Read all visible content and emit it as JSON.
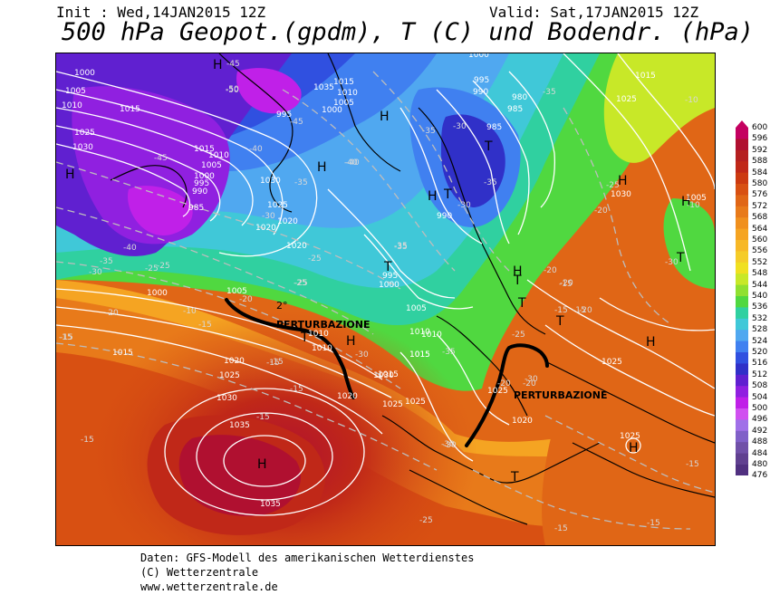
{
  "header": {
    "init": "Init : Wed,14JAN2015 12Z",
    "valid": "Valid: Sat,17JAN2015 12Z",
    "title": "500 hPa Geopot.(gpdm), T (C) und Bodendr. (hPa)"
  },
  "footer": {
    "line1": "Daten: GFS-Modell des amerikanischen Wetterdienstes",
    "line2": "(C) Wetterzentrale",
    "line3": "www.wetterzentrale.de"
  },
  "annotations": {
    "front_west": "PERTURBAZIONE",
    "front_east": "PERTURBAZIONE",
    "note_degree": "2°"
  },
  "pressure_centers": [
    "H",
    "H",
    "H",
    "H",
    "H",
    "H",
    "H",
    "H",
    "H",
    "H",
    "H",
    "H",
    "T",
    "T",
    "T",
    "T",
    "T",
    "T",
    "T",
    "T",
    "T"
  ],
  "isobar_labels": [
    "1000",
    "1005",
    "1010",
    "1015",
    "1025",
    "1030",
    "1015",
    "1010",
    "1005",
    "1000",
    "995",
    "990",
    "985",
    "1030",
    "1025",
    "1020",
    "1035",
    "1015",
    "1010",
    "1005",
    "1000",
    "995",
    "990",
    "985",
    "980",
    "985",
    "990",
    "995",
    "1000",
    "1015",
    "1025",
    "1020",
    "1020",
    "995",
    "1000",
    "1005",
    "1010",
    "1015",
    "1020",
    "1025",
    "1030",
    "1035",
    "1035",
    "1000",
    "1005",
    "1010",
    "1015",
    "1025",
    "1030",
    "1020",
    "1015",
    "1025",
    "1025",
    "1020",
    "1025",
    "1030",
    "1005",
    "1010",
    "1015",
    "1025",
    "1010"
  ],
  "temperature_labels": [
    "-45",
    "-50",
    "-45",
    "-40",
    "-35",
    "-30",
    "-25",
    "-20",
    "-15",
    "-10",
    "-35",
    "-40",
    "-30",
    "-25",
    "-25",
    "-20",
    "-15",
    "-15",
    "-15",
    "-15",
    "-35",
    "-40",
    "-35",
    "-30",
    "-35",
    "-30",
    "-25",
    "-20",
    "-15",
    "-15",
    "-30",
    "-35",
    "-25",
    "-20",
    "-30",
    "-30",
    "-20",
    "-15",
    "-15",
    "-15",
    "-20",
    "-25",
    "-15",
    "-15",
    "-15",
    "-10",
    "-10",
    "-20",
    "-25",
    "-30",
    "-35",
    "-45",
    "-50",
    "-40",
    "-35",
    "-25",
    "-30",
    "-20",
    "-15"
  ],
  "scale": {
    "values": [
      "600",
      "596",
      "592",
      "588",
      "584",
      "580",
      "576",
      "572",
      "568",
      "564",
      "560",
      "556",
      "552",
      "548",
      "544",
      "540",
      "536",
      "532",
      "528",
      "524",
      "520",
      "516",
      "512",
      "508",
      "504",
      "500",
      "496",
      "492",
      "488",
      "484",
      "480",
      "476"
    ],
    "colors": [
      "#c40060",
      "#b01030",
      "#b52020",
      "#c02818",
      "#cc3a10",
      "#d85012",
      "#e06616",
      "#e87a1a",
      "#f0901e",
      "#f5a422",
      "#f7b826",
      "#f5cc28",
      "#f0e020",
      "#c8e828",
      "#90e030",
      "#50d840",
      "#30d0a0",
      "#40c8d8",
      "#50a8f0",
      "#4080f0",
      "#3050e0",
      "#3030c8",
      "#6020d0",
      "#9020e0",
      "#c020e8",
      "#d050f0",
      "#a070e8",
      "#8060c8",
      "#7050a8",
      "#604090",
      "#503080",
      "#402070"
    ]
  },
  "colors": {
    "front_line": "#000000",
    "isoline": "#ffffff",
    "temp_line": "#c8c8c8"
  }
}
